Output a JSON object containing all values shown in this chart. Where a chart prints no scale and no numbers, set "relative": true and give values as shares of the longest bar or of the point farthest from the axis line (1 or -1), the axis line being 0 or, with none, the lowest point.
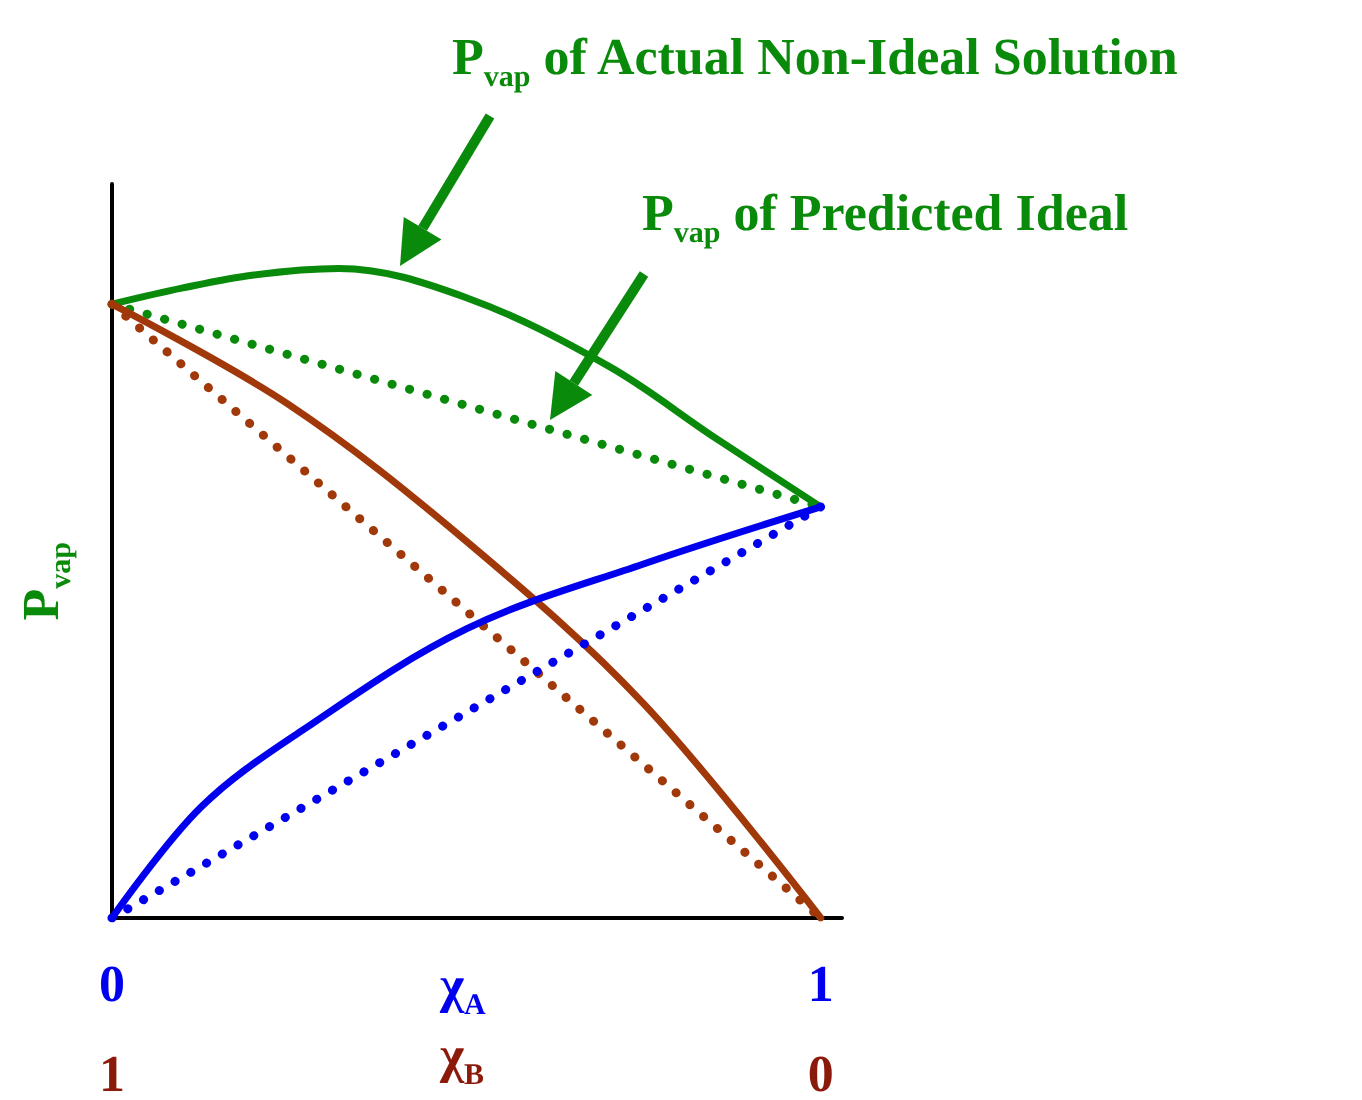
{
  "chart_data": {
    "type": "line",
    "relative": true,
    "marker": "none",
    "ylabel": "P$_{vap}$",
    "xlabel": "χ$_{A}$",
    "x2label": "χ$_{B}$",
    "xlim": [
      0,
      1.03
    ],
    "xticks": [
      0,
      1
    ],
    "x2lim": [
      1,
      -0.03
    ],
    "x2ticks": [
      1,
      0
    ],
    "series": [
      {
        "color": "#0a8a0a",
        "line_style": "solid",
        "x": [
          0,
          0.1,
          0.2,
          0.32,
          0.5,
          0.7,
          0.85,
          1
        ],
        "values": [
          0.945,
          0.97,
          0.99,
          1,
          0.955,
          0.85,
          0.74,
          0.633
        ]
      },
      {
        "color": "#0a8a0a",
        "line_style": "dotted",
        "x": [
          0,
          1
        ],
        "values": [
          0.945,
          0.633
        ]
      },
      {
        "color": "#a0380a",
        "line_style": "solid",
        "x": [
          0,
          0.25,
          0.5,
          0.75,
          1
        ],
        "values": [
          0.945,
          0.79,
          0.58,
          0.33,
          0
        ]
      },
      {
        "color": "#a0380a",
        "line_style": "dotted",
        "x": [
          0,
          1
        ],
        "values": [
          0.945,
          0
        ]
      },
      {
        "color": "#0000ee",
        "line_style": "solid",
        "x": [
          0,
          0.125,
          0.27,
          0.5,
          0.75,
          1
        ],
        "values": [
          0,
          0.17,
          0.29,
          0.445,
          0.545,
          0.633
        ]
      },
      {
        "color": "#0000ee",
        "line_style": "dotted",
        "x": [
          0,
          1
        ],
        "values": [
          0,
          0.633
        ]
      }
    ],
    "annotations": [
      "P$_{vap}$ of Actual Non-Ideal Solution",
      "P$_{vap}$ of Predicted Ideal"
    ]
  }
}
